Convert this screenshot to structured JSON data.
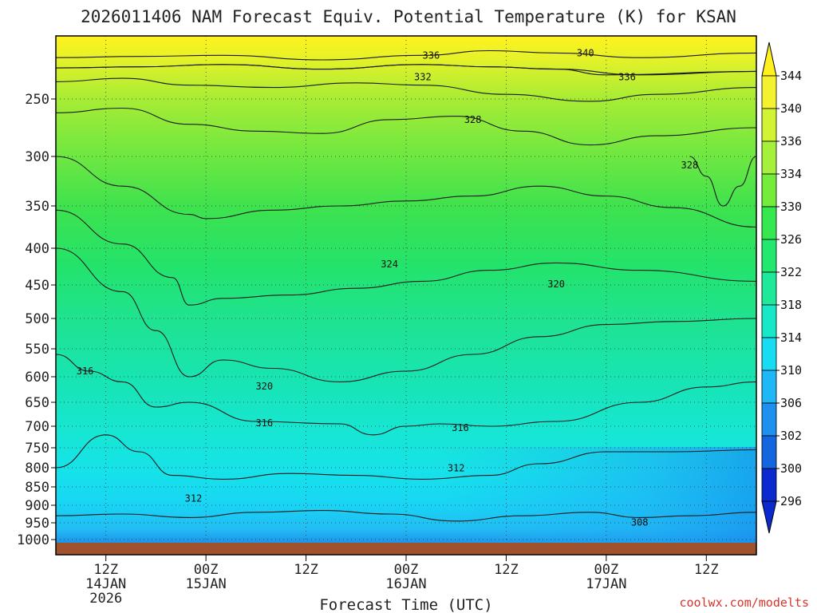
{
  "chart_data": {
    "type": "contour",
    "title": "2026011406 NAM Forecast Equiv. Potential Temperature (K) for KSAN",
    "xlabel": "Forecast Time (UTC)",
    "ylabel": "",
    "credit": "coolwx.com/modelts",
    "x_ticks": [
      {
        "line1": "12Z",
        "line2": "14JAN",
        "line3": "2026"
      },
      {
        "line1": "00Z",
        "line2": "15JAN",
        "line3": ""
      },
      {
        "line1": "12Z",
        "line2": "",
        "line3": ""
      },
      {
        "line1": "00Z",
        "line2": "16JAN",
        "line3": ""
      },
      {
        "line1": "12Z",
        "line2": "",
        "line3": ""
      },
      {
        "line1": "00Z",
        "line2": "17JAN",
        "line3": ""
      },
      {
        "line1": "12Z",
        "line2": "",
        "line3": ""
      }
    ],
    "x_tick_hours": [
      6,
      18,
      30,
      42,
      54,
      66,
      78
    ],
    "x_range_hours": [
      0,
      84
    ],
    "y_ticks": [
      250,
      300,
      350,
      400,
      450,
      500,
      550,
      600,
      650,
      700,
      750,
      800,
      850,
      900,
      950,
      1000
    ],
    "y_range_hpa": [
      200,
      1030
    ],
    "colorbar": {
      "levels": [
        296,
        300,
        302,
        306,
        310,
        314,
        318,
        322,
        326,
        330,
        334,
        336,
        340,
        344
      ],
      "colors": [
        "#0a2ad0",
        "#1466e0",
        "#1e90f0",
        "#1fb8f6",
        "#18dcf2",
        "#16e8c8",
        "#1ee89a",
        "#22e870",
        "#36e850",
        "#74ec3c",
        "#a4f03a",
        "#d2f234",
        "#f4f230",
        "#fff01e"
      ]
    },
    "contours": [
      {
        "level": 340,
        "label_hour": 60,
        "points": [
          [
            0,
            214
          ],
          [
            10,
            213
          ],
          [
            20,
            212
          ],
          [
            32,
            216
          ],
          [
            44,
            212
          ],
          [
            52,
            208
          ],
          [
            60,
            210
          ],
          [
            70,
            214
          ],
          [
            84,
            210
          ]
        ]
      },
      {
        "level": 336,
        "label_hour": 42,
        "points": [
          [
            0,
            223
          ],
          [
            10,
            222
          ],
          [
            20,
            220
          ],
          [
            32,
            224
          ],
          [
            44,
            220
          ],
          [
            52,
            222
          ],
          [
            60,
            224
          ],
          [
            70,
            229
          ],
          [
            84,
            226
          ]
        ]
      },
      {
        "level": 336,
        "label_hour": 66,
        "points": [
          [
            0,
            223
          ],
          [
            10,
            222
          ],
          [
            20,
            220
          ],
          [
            32,
            224
          ],
          [
            44,
            220
          ],
          [
            52,
            222
          ],
          [
            60,
            224
          ],
          [
            66,
            229
          ],
          [
            84,
            226
          ]
        ]
      },
      {
        "level": 332,
        "label_hour": 40,
        "points": [
          [
            0,
            235
          ],
          [
            8,
            232
          ],
          [
            16,
            238
          ],
          [
            26,
            240
          ],
          [
            36,
            236
          ],
          [
            44,
            238
          ],
          [
            54,
            246
          ],
          [
            64,
            252
          ],
          [
            72,
            246
          ],
          [
            84,
            240
          ]
        ]
      },
      {
        "level": 328,
        "label_hour": 49,
        "points": [
          [
            0,
            262
          ],
          [
            8,
            258
          ],
          [
            16,
            272
          ],
          [
            24,
            278
          ],
          [
            32,
            280
          ],
          [
            40,
            268
          ],
          [
            48,
            265
          ],
          [
            56,
            278
          ],
          [
            64,
            290
          ],
          [
            72,
            282
          ],
          [
            84,
            275
          ]
        ]
      },
      {
        "level": 328,
        "label_hour": 76,
        "points": [
          [
            76,
            300
          ],
          [
            78,
            320
          ],
          [
            80,
            350
          ],
          [
            82,
            330
          ],
          [
            84,
            300
          ]
        ]
      },
      {
        "level": 324,
        "label_hour": 38,
        "points": [
          [
            0,
            300
          ],
          [
            8,
            330
          ],
          [
            16,
            360
          ],
          [
            18,
            365
          ],
          [
            26,
            355
          ],
          [
            34,
            350
          ],
          [
            42,
            345
          ],
          [
            50,
            340
          ],
          [
            58,
            330
          ],
          [
            66,
            340
          ],
          [
            74,
            352
          ],
          [
            84,
            375
          ]
        ]
      },
      {
        "level": 320,
        "label_hour": 57,
        "points": [
          [
            0,
            355
          ],
          [
            8,
            395
          ],
          [
            14,
            440
          ],
          [
            16,
            480
          ],
          [
            20,
            470
          ],
          [
            28,
            465
          ],
          [
            36,
            455
          ],
          [
            44,
            445
          ],
          [
            52,
            430
          ],
          [
            60,
            420
          ],
          [
            70,
            430
          ],
          [
            84,
            445
          ]
        ]
      },
      {
        "level": 320,
        "label_hour": 25,
        "points": [
          [
            0,
            400
          ],
          [
            8,
            460
          ],
          [
            12,
            520
          ],
          [
            16,
            600
          ],
          [
            20,
            570
          ],
          [
            26,
            585
          ],
          [
            34,
            610
          ],
          [
            42,
            590
          ],
          [
            50,
            560
          ],
          [
            58,
            530
          ],
          [
            66,
            510
          ],
          [
            74,
            505
          ],
          [
            84,
            500
          ]
        ]
      },
      {
        "level": 316,
        "label_hour": 4,
        "points": [
          [
            0,
            560
          ],
          [
            4,
            590
          ],
          [
            8,
            610
          ],
          [
            12,
            660
          ],
          [
            16,
            650
          ],
          [
            24,
            690
          ],
          [
            34,
            695
          ],
          [
            38,
            720
          ],
          [
            42,
            700
          ],
          [
            46,
            695
          ],
          [
            52,
            700
          ],
          [
            60,
            690
          ],
          [
            70,
            650
          ],
          [
            78,
            620
          ],
          [
            84,
            610
          ]
        ]
      },
      {
        "level": 316,
        "label_hour": 24,
        "points": [
          [
            0,
            560
          ],
          [
            4,
            590
          ],
          [
            8,
            610
          ],
          [
            12,
            660
          ],
          [
            16,
            650
          ],
          [
            24,
            690
          ],
          [
            34,
            695
          ],
          [
            38,
            720
          ],
          [
            42,
            700
          ],
          [
            46,
            695
          ],
          [
            52,
            700
          ],
          [
            60,
            690
          ],
          [
            70,
            650
          ],
          [
            78,
            620
          ],
          [
            84,
            610
          ]
        ]
      },
      {
        "level": 312,
        "label_hour": 17,
        "points": [
          [
            0,
            800
          ],
          [
            6,
            720
          ],
          [
            10,
            760
          ],
          [
            14,
            820
          ],
          [
            20,
            830
          ],
          [
            28,
            815
          ],
          [
            36,
            820
          ],
          [
            44,
            830
          ],
          [
            52,
            820
          ],
          [
            58,
            790
          ],
          [
            66,
            760
          ],
          [
            74,
            760
          ],
          [
            84,
            755
          ]
        ]
      },
      {
        "level": 308,
        "label_hour": 70,
        "points": [
          [
            0,
            930
          ],
          [
            8,
            925
          ],
          [
            16,
            935
          ],
          [
            24,
            920
          ],
          [
            32,
            915
          ],
          [
            40,
            925
          ],
          [
            48,
            945
          ],
          [
            56,
            930
          ],
          [
            64,
            920
          ],
          [
            70,
            935
          ],
          [
            76,
            930
          ],
          [
            84,
            920
          ]
        ]
      }
    ],
    "contour_labels": [
      {
        "text": "340",
        "hour": 63.5,
        "hpa": 210
      },
      {
        "text": "336",
        "hour": 45,
        "hpa": 212
      },
      {
        "text": "336",
        "hour": 68.5,
        "hpa": 231
      },
      {
        "text": "332",
        "hour": 44,
        "hpa": 231
      },
      {
        "text": "328",
        "hour": 50,
        "hpa": 268
      },
      {
        "text": "328",
        "hour": 76,
        "hpa": 309
      },
      {
        "text": "324",
        "hour": 40,
        "hpa": 422
      },
      {
        "text": "320",
        "hour": 60,
        "hpa": 449
      },
      {
        "text": "320",
        "hour": 25,
        "hpa": 619
      },
      {
        "text": "316",
        "hour": 3.5,
        "hpa": 590
      },
      {
        "text": "316",
        "hour": 25,
        "hpa": 693
      },
      {
        "text": "316",
        "hour": 48.5,
        "hpa": 704
      },
      {
        "text": "312",
        "hour": 48,
        "hpa": 801
      },
      {
        "text": "312",
        "hour": 16.5,
        "hpa": 881
      },
      {
        "text": "308",
        "hour": 70,
        "hpa": 949
      }
    ]
  }
}
